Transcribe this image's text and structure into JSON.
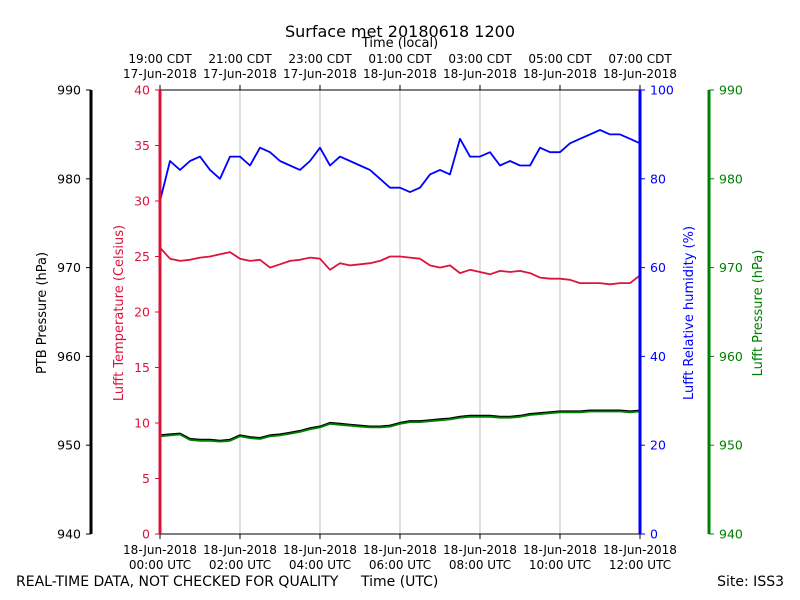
{
  "chart_data": {
    "type": "line",
    "title": "Surface met 20180618 1200",
    "xlabel_top": "Time (local)",
    "xlabel_bottom": "Time (UTC)",
    "top_ticks": [
      {
        "hour": 0,
        "line1": "19:00 CDT",
        "line2": "17-Jun-2018"
      },
      {
        "hour": 2,
        "line1": "21:00 CDT",
        "line2": "17-Jun-2018"
      },
      {
        "hour": 4,
        "line1": "23:00 CDT",
        "line2": "17-Jun-2018"
      },
      {
        "hour": 6,
        "line1": "01:00 CDT",
        "line2": "18-Jun-2018"
      },
      {
        "hour": 8,
        "line1": "03:00 CDT",
        "line2": "18-Jun-2018"
      },
      {
        "hour": 10,
        "line1": "05:00 CDT",
        "line2": "18-Jun-2018"
      },
      {
        "hour": 12,
        "line1": "07:00 CDT",
        "line2": "18-Jun-2018"
      }
    ],
    "bottom_ticks": [
      {
        "hour": 0,
        "line1": "18-Jun-2018",
        "line2": "00:00 UTC"
      },
      {
        "hour": 2,
        "line1": "18-Jun-2018",
        "line2": "02:00 UTC"
      },
      {
        "hour": 4,
        "line1": "18-Jun-2018",
        "line2": "04:00 UTC"
      },
      {
        "hour": 6,
        "line1": "18-Jun-2018",
        "line2": "06:00 UTC"
      },
      {
        "hour": 8,
        "line1": "18-Jun-2018",
        "line2": "08:00 UTC"
      },
      {
        "hour": 10,
        "line1": "18-Jun-2018",
        "line2": "10:00 UTC"
      },
      {
        "hour": 12,
        "line1": "18-Jun-2018",
        "line2": "12:00 UTC"
      }
    ],
    "xlim": [
      0,
      12
    ],
    "axes": {
      "ptb_pressure": {
        "label": "PTB Pressure (hPa)",
        "ylim": [
          940,
          990
        ],
        "ticks": [
          940,
          950,
          960,
          970,
          980,
          990
        ],
        "color": "#000000"
      },
      "temperature": {
        "label": "Lufft Temperature (Celsius)",
        "ylim": [
          0,
          40
        ],
        "ticks": [
          0,
          5,
          10,
          15,
          20,
          25,
          30,
          35,
          40
        ],
        "color": "#dc143c"
      },
      "humidity": {
        "label": "Lufft Relative humidity (%)",
        "ylim": [
          0,
          100
        ],
        "ticks": [
          0,
          20,
          40,
          60,
          80,
          100
        ],
        "color": "#0000ff"
      },
      "lufft_pressure": {
        "label": "Lufft Pressure (hPa)",
        "ylim": [
          940,
          990
        ],
        "ticks": [
          940,
          950,
          960,
          970,
          980,
          990
        ],
        "color": "#008000"
      }
    },
    "series": [
      {
        "name": "Lufft Relative humidity",
        "axis": "humidity",
        "color": "#0000ff",
        "x": [
          0,
          0.25,
          0.5,
          0.75,
          1.0,
          1.25,
          1.5,
          1.75,
          2.0,
          2.25,
          2.5,
          2.75,
          3.0,
          3.25,
          3.5,
          3.75,
          4.0,
          4.25,
          4.5,
          4.75,
          5.0,
          5.25,
          5.5,
          5.75,
          6.0,
          6.25,
          6.5,
          6.75,
          7.0,
          7.25,
          7.5,
          7.75,
          8.0,
          8.25,
          8.5,
          8.75,
          9.0,
          9.25,
          9.5,
          9.75,
          10.0,
          10.25,
          10.5,
          10.75,
          11.0,
          11.25,
          11.5,
          11.75,
          12.0
        ],
        "values": [
          75,
          84,
          82,
          84,
          85,
          82,
          80,
          85,
          85,
          83,
          87,
          86,
          84,
          83,
          82,
          84,
          87,
          83,
          85,
          84,
          83,
          82,
          80,
          78,
          78,
          77,
          78,
          81,
          82,
          81,
          89,
          85,
          85,
          86,
          83,
          84,
          83,
          83,
          87,
          86,
          86,
          88,
          89,
          90,
          91,
          90,
          90,
          89,
          88
        ]
      },
      {
        "name": "Lufft Temperature",
        "axis": "temperature",
        "color": "#dc143c",
        "x": [
          0,
          0.25,
          0.5,
          0.75,
          1.0,
          1.25,
          1.5,
          1.75,
          2.0,
          2.25,
          2.5,
          2.75,
          3.0,
          3.25,
          3.5,
          3.75,
          4.0,
          4.25,
          4.5,
          4.75,
          5.0,
          5.25,
          5.5,
          5.75,
          6.0,
          6.25,
          6.5,
          6.75,
          7.0,
          7.25,
          7.5,
          7.75,
          8.0,
          8.25,
          8.5,
          8.75,
          9.0,
          9.25,
          9.5,
          9.75,
          10.0,
          10.25,
          10.5,
          10.75,
          11.0,
          11.25,
          11.5,
          11.75,
          12.0
        ],
        "values": [
          25.8,
          24.8,
          24.6,
          24.7,
          24.9,
          25.0,
          25.2,
          25.4,
          24.8,
          24.6,
          24.7,
          24.0,
          24.3,
          24.6,
          24.7,
          24.9,
          24.8,
          23.8,
          24.4,
          24.2,
          24.3,
          24.4,
          24.6,
          25.0,
          25.0,
          24.9,
          24.8,
          24.2,
          24.0,
          24.2,
          23.5,
          23.8,
          23.6,
          23.4,
          23.7,
          23.6,
          23.7,
          23.5,
          23.1,
          23.0,
          23.0,
          22.9,
          22.6,
          22.6,
          22.6,
          22.5,
          22.6,
          22.6,
          23.3
        ]
      },
      {
        "name": "PTB Pressure",
        "axis": "ptb_pressure",
        "color": "#000000",
        "x": [
          0,
          0.25,
          0.5,
          0.75,
          1.0,
          1.25,
          1.5,
          1.75,
          2.0,
          2.25,
          2.5,
          2.75,
          3.0,
          3.25,
          3.5,
          3.75,
          4.0,
          4.25,
          4.5,
          4.75,
          5.0,
          5.25,
          5.5,
          5.75,
          6.0,
          6.25,
          6.5,
          6.75,
          7.0,
          7.25,
          7.5,
          7.75,
          8.0,
          8.25,
          8.5,
          8.75,
          9.0,
          9.25,
          9.5,
          9.75,
          10.0,
          10.25,
          10.5,
          10.75,
          11.0,
          11.25,
          11.5,
          11.75,
          12.0
        ],
        "values": [
          951.1,
          951.2,
          951.3,
          950.7,
          950.6,
          950.6,
          950.5,
          950.6,
          951.1,
          950.9,
          950.8,
          951.1,
          951.2,
          951.4,
          951.6,
          951.9,
          952.1,
          952.5,
          952.4,
          952.3,
          952.2,
          952.1,
          952.1,
          952.2,
          952.5,
          952.7,
          952.7,
          952.8,
          952.9,
          953.0,
          953.2,
          953.3,
          953.3,
          953.3,
          953.2,
          953.2,
          953.3,
          953.5,
          953.6,
          953.7,
          953.8,
          953.8,
          953.8,
          953.9,
          953.9,
          953.9,
          953.9,
          953.8,
          953.9
        ]
      },
      {
        "name": "Lufft Pressure",
        "axis": "lufft_pressure",
        "color": "#008000",
        "x": [
          0,
          0.25,
          0.5,
          0.75,
          1.0,
          1.25,
          1.5,
          1.75,
          2.0,
          2.25,
          2.5,
          2.75,
          3.0,
          3.25,
          3.5,
          3.75,
          4.0,
          4.25,
          4.5,
          4.75,
          5.0,
          5.25,
          5.5,
          5.75,
          6.0,
          6.25,
          6.5,
          6.75,
          7.0,
          7.25,
          7.5,
          7.75,
          8.0,
          8.25,
          8.5,
          8.75,
          9.0,
          9.25,
          9.5,
          9.75,
          10.0,
          10.25,
          10.5,
          10.75,
          11.0,
          11.25,
          11.5,
          11.75,
          12.0
        ],
        "values": [
          951.0,
          951.1,
          951.2,
          950.6,
          950.5,
          950.5,
          950.4,
          950.5,
          951.0,
          950.8,
          950.7,
          951.0,
          951.1,
          951.3,
          951.5,
          951.8,
          952.0,
          952.4,
          952.3,
          952.2,
          952.1,
          952.0,
          952.0,
          952.1,
          952.4,
          952.6,
          952.6,
          952.7,
          952.8,
          952.9,
          953.1,
          953.2,
          953.2,
          953.2,
          953.1,
          953.1,
          953.2,
          953.4,
          953.5,
          953.6,
          953.7,
          953.7,
          953.7,
          953.8,
          953.8,
          953.8,
          953.8,
          953.7,
          953.8
        ]
      }
    ]
  },
  "footer": {
    "left": "REAL-TIME DATA, NOT CHECKED FOR QUALITY",
    "center": "Time (UTC)",
    "right": "Site: ISS3"
  }
}
